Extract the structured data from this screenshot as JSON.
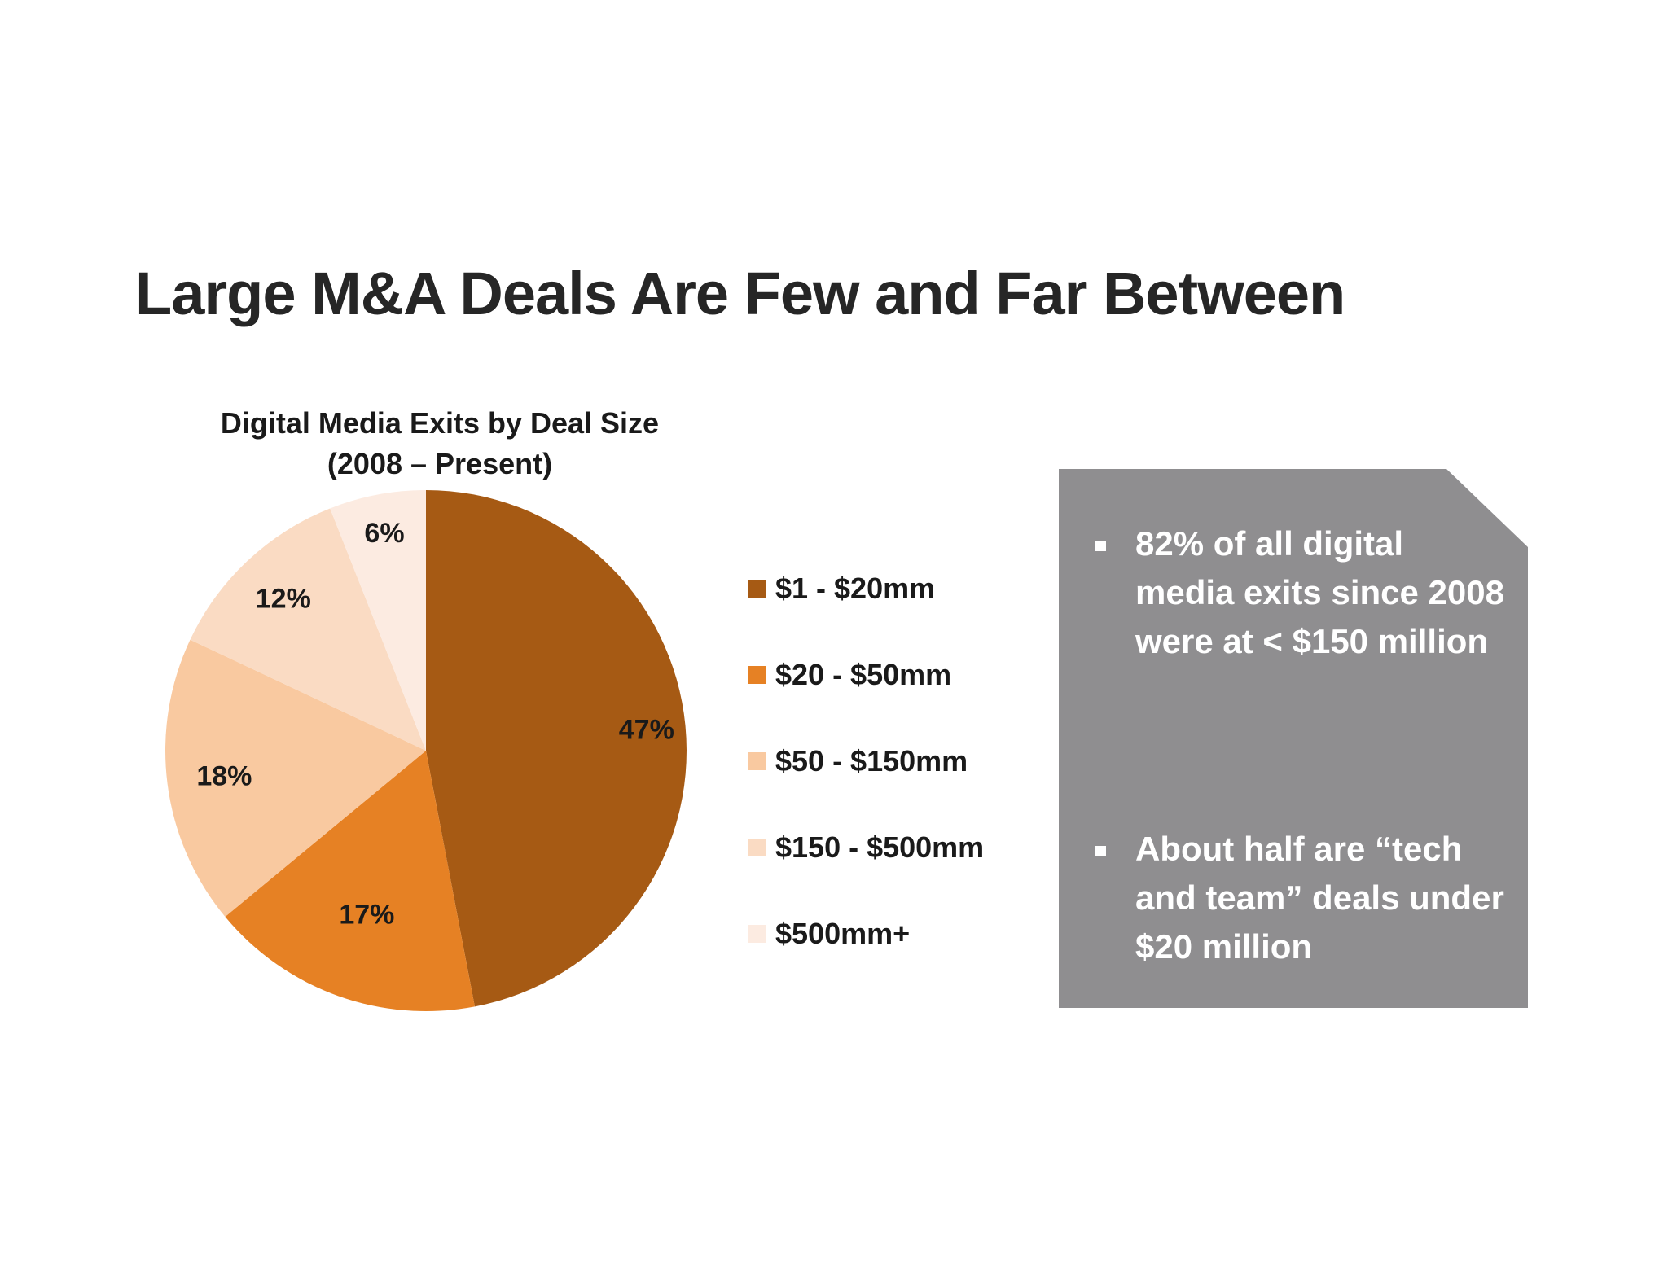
{
  "slide": {
    "title": "Large M&A Deals Are Few and Far Between"
  },
  "chart_data": {
    "type": "pie",
    "title_line1": "Digital Media Exits by Deal Size",
    "title_line2": "(2008 – Present)",
    "categories": [
      "$1 - $20mm",
      "$20 - $50mm",
      "$50 - $150mm",
      "$150 - $500mm",
      "$500mm+"
    ],
    "values": [
      47,
      17,
      18,
      12,
      6
    ],
    "labels": [
      "47%",
      "17%",
      "18%",
      "12%",
      "6%"
    ],
    "colors": [
      "#a65a14",
      "#e68124",
      "#f9c9a0",
      "#fadbc3",
      "#fcebe1"
    ],
    "start_angle_deg": 0,
    "direction": "clockwise",
    "legend_position": "right"
  },
  "callout": {
    "bullets": [
      "82% of all digital media exits since 2008 were at < $150 million",
      "About half are “tech and team” deals under $20 million"
    ],
    "background": "#8f8e90"
  }
}
